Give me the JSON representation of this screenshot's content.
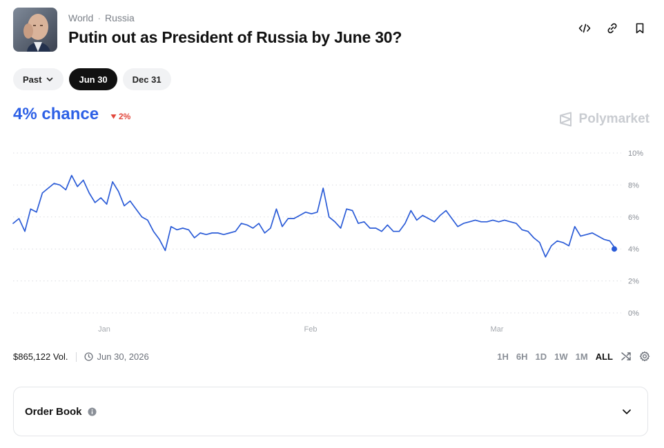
{
  "breadcrumb": {
    "category": "World",
    "subcategory": "Russia"
  },
  "market": {
    "title": "Putin out as President of Russia by June 30?",
    "chance_text": "4% chance",
    "change_text": "2%",
    "volume": "$865,122 Vol.",
    "end_date": "Jun 30, 2026"
  },
  "header_actions": [
    "embed-icon",
    "link-icon",
    "bookmark-icon"
  ],
  "date_filters": {
    "past_label": "Past",
    "options": [
      {
        "label": "Jun 30",
        "active": true
      },
      {
        "label": "Dec 31",
        "active": false
      }
    ]
  },
  "brand": {
    "name": "Polymarket"
  },
  "time_ranges": [
    {
      "label": "1H",
      "active": false
    },
    {
      "label": "6H",
      "active": false
    },
    {
      "label": "1D",
      "active": false
    },
    {
      "label": "1W",
      "active": false
    },
    {
      "label": "1M",
      "active": false
    },
    {
      "label": "ALL",
      "active": true
    }
  ],
  "order_book": {
    "label": "Order Book"
  },
  "colors": {
    "accent": "#2d60e6",
    "down": "#e2483d",
    "line": "#2a5bd7"
  },
  "chart_data": {
    "type": "line",
    "x_tick_labels": [
      "Jan",
      "Feb",
      "Mar"
    ],
    "y_tick_labels": [
      "10%",
      "8%",
      "6%",
      "4%",
      "2%",
      "0%"
    ],
    "ylim": [
      0,
      10
    ],
    "grid": true,
    "series": [
      {
        "values": [
          5.6,
          5.9,
          5.1,
          6.5,
          6.3,
          7.5,
          7.8,
          8.1,
          8.0,
          7.7,
          8.6,
          7.9,
          8.3,
          7.5,
          6.9,
          7.2,
          6.8,
          8.2,
          7.6,
          6.7,
          7.0,
          6.5,
          6.0,
          5.8,
          5.1,
          4.6,
          3.9,
          5.4,
          5.2,
          5.3,
          5.2,
          4.7,
          5.0,
          4.9,
          5.0,
          5.0,
          4.9,
          5.0,
          5.1,
          5.6,
          5.5,
          5.3,
          5.6,
          5.0,
          5.3,
          6.5,
          5.4,
          5.9,
          5.9,
          6.1,
          6.3,
          6.2,
          6.3,
          7.8,
          6.0,
          5.7,
          5.3,
          6.5,
          6.4,
          5.6,
          5.7,
          5.3,
          5.3,
          5.1,
          5.5,
          5.1,
          5.1,
          5.6,
          6.4,
          5.8,
          6.1,
          5.9,
          5.7,
          6.1,
          6.4,
          5.9,
          5.4,
          5.6,
          5.7,
          5.8,
          5.7,
          5.7,
          5.8,
          5.7,
          5.8,
          5.7,
          5.6,
          5.2,
          5.1,
          4.7,
          4.4,
          3.5,
          4.2,
          4.5,
          4.4,
          4.2,
          5.4,
          4.8,
          4.9,
          5.0,
          4.8,
          4.6,
          4.5,
          4.0
        ],
        "last_value": 4.0
      }
    ]
  }
}
